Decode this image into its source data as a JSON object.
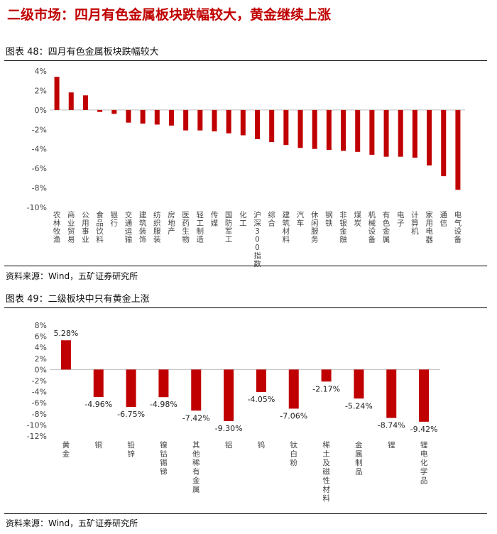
{
  "page": {
    "title": "二级市场：四月有色金属板块跌幅较大，黄金继续上涨"
  },
  "figures": [
    {
      "label": "图表 48：四月有色金属板块跌幅较大",
      "source": "资料来源：Wind，五矿证券研究所"
    },
    {
      "label": "图表 49：二级板块中只有黄金上涨",
      "source": "资料来源：Wind，五矿证券研究所"
    }
  ],
  "colors": {
    "bar": "#c00000",
    "axis": "#bfbfbf",
    "title": "#c00000"
  },
  "chart_data": [
    {
      "type": "bar",
      "categories": [
        "农林牧渔",
        "商业贸易",
        "公用事业",
        "食品饮料",
        "银行",
        "交通运输",
        "建筑装饰",
        "纺织服装",
        "房地产",
        "医药生物",
        "轻工制造",
        "传媒",
        "国防军工",
        "化工",
        "沪深300指数",
        "综合",
        "建筑材料",
        "汽车",
        "休闲服务",
        "钢铁",
        "非银金融",
        "煤炭",
        "机械设备",
        "有色金属",
        "电子",
        "计算机",
        "家用电器",
        "通信",
        "电气设备"
      ],
      "values": [
        3.4,
        1.8,
        1.5,
        -0.2,
        -0.4,
        -1.3,
        -1.4,
        -1.5,
        -1.6,
        -2.1,
        -2.1,
        -2.2,
        -2.4,
        -2.6,
        -3.0,
        -3.3,
        -3.6,
        -3.9,
        -4.0,
        -4.1,
        -4.2,
        -4.3,
        -4.6,
        -4.8,
        -4.8,
        -4.9,
        -5.7,
        -6.8,
        -8.2
      ],
      "y_ticks": [
        "4%",
        "2%",
        "0%",
        "-2%",
        "-4%",
        "-6%",
        "-8%",
        "-10%"
      ],
      "ylim": [
        -10,
        4
      ]
    },
    {
      "type": "bar",
      "categories": [
        "黄金",
        "铜",
        "铅锌",
        "镍钴锡锑",
        "其他稀有金属",
        "铝",
        "钨",
        "钛白粉",
        "稀土及磁性材料",
        "金属制品",
        "锂",
        "锂电化学品"
      ],
      "values": [
        5.28,
        -4.96,
        -6.75,
        -4.98,
        -7.42,
        -9.3,
        -4.05,
        -7.06,
        -2.17,
        -5.24,
        -8.74,
        -9.42
      ],
      "data_labels": [
        "5.28%",
        "-4.96%",
        "-6.75%",
        "-4.98%",
        "-7.42%",
        "-9.30%",
        "-4.05%",
        "-7.06%",
        "-2.17%",
        "-5.24%",
        "-8.74%",
        "-9.42%"
      ],
      "y_ticks": [
        "8%",
        "6%",
        "4%",
        "2%",
        "0%",
        "-2%",
        "-4%",
        "-6%",
        "-8%",
        "-10%",
        "-12%"
      ],
      "ylim": [
        -12,
        8
      ]
    }
  ]
}
